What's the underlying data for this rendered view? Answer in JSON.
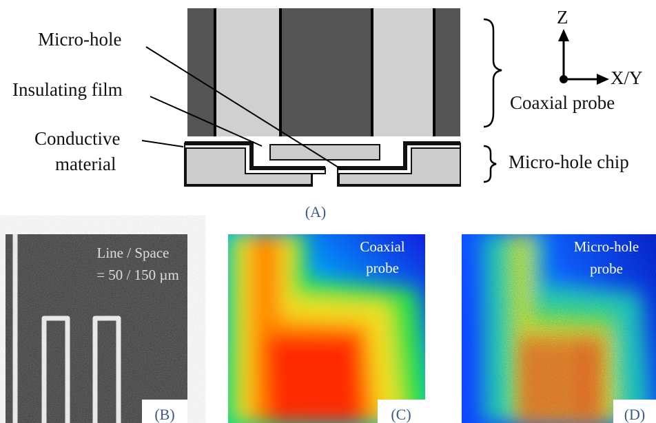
{
  "panel_a": {
    "labels": {
      "micro_hole": "Micro-hole",
      "insulating_film": "Insulating film",
      "conductive_material": [
        "Conductive",
        "material"
      ],
      "coaxial_probe": "Coaxial probe",
      "micro_hole_chip": "Micro-hole chip",
      "axis_z": "Z",
      "axis_xy": "X/Y"
    },
    "caption": "(A)"
  },
  "panel_b": {
    "annotation": [
      "Line / Space",
      "= 50 / 150 µm"
    ],
    "caption": "(B)"
  },
  "panel_c": {
    "annotation": [
      "Coaxial",
      "probe"
    ],
    "caption": "(C)"
  },
  "panel_d": {
    "annotation": [
      "Micro-hole",
      "probe"
    ],
    "caption": "(D)"
  }
}
